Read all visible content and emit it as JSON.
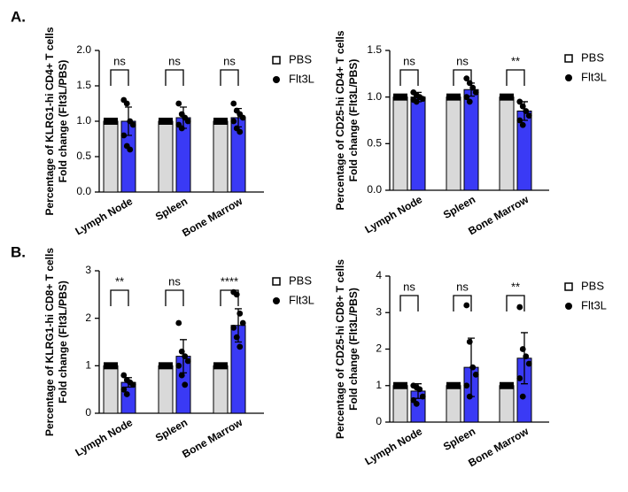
{
  "panel_labels": [
    "A.",
    "B."
  ],
  "chart_data": [
    {
      "type": "bar",
      "ylabel": [
        "Percentage of KLRG1-hi CD4+ T cells",
        "Fold change (Flt3L/PBS)"
      ],
      "categories": [
        "Lymph Node",
        "Spleen",
        "Bone Marrow"
      ],
      "series": [
        {
          "name": "PBS",
          "color": "#d9d9d9",
          "marker": "square",
          "values": [
            1,
            1,
            1
          ]
        },
        {
          "name": "Flt3L",
          "color": "#3a3af5",
          "marker": "circle",
          "values": [
            1.0,
            1.05,
            1.05
          ],
          "errors": [
            0.2,
            0.15,
            0.13
          ],
          "points": [
            [
              1.3,
              1.25,
              1.0,
              0.95,
              0.8,
              0.65,
              0.6
            ],
            [
              1.25,
              1.1,
              1.05,
              1.0,
              0.95,
              0.9
            ],
            [
              1.25,
              1.15,
              1.1,
              1.05,
              1.0,
              0.9,
              0.85
            ]
          ]
        }
      ],
      "annotations": [
        "ns",
        "ns",
        "ns"
      ],
      "ylim": [
        0,
        2
      ],
      "yticks": [
        {
          "value": 0,
          "label": "0.0"
        },
        {
          "value": 0.5,
          "label": "0.5"
        },
        {
          "value": 1,
          "label": "1.0"
        },
        {
          "value": 1.5,
          "label": "1.5"
        },
        {
          "value": 2,
          "label": "2.0"
        }
      ]
    },
    {
      "type": "bar",
      "ylabel": [
        "Percentage of CD25-hi CD4+ T cells",
        "Fold change (Flt3L/PBS)"
      ],
      "categories": [
        "Lymph Node",
        "Spleen",
        "Bone Marrow"
      ],
      "series": [
        {
          "name": "PBS",
          "color": "#d9d9d9",
          "marker": "square",
          "values": [
            1,
            1,
            1
          ]
        },
        {
          "name": "Flt3L",
          "color": "#3a3af5",
          "marker": "circle",
          "values": [
            1.0,
            1.08,
            0.85
          ],
          "errors": [
            0.05,
            0.07,
            0.1
          ],
          "points": [
            [
              1.05,
              1.02,
              1.0,
              0.98,
              0.97,
              0.95
            ],
            [
              1.2,
              1.15,
              1.1,
              1.05,
              1.0,
              0.95
            ],
            [
              0.95,
              0.9,
              0.85,
              0.8,
              0.75,
              0.7
            ]
          ]
        }
      ],
      "annotations": [
        "ns",
        "ns",
        "**"
      ],
      "ylim": [
        0,
        1.5
      ],
      "yticks": [
        {
          "value": 0,
          "label": "0.0"
        },
        {
          "value": 0.5,
          "label": "0.5"
        },
        {
          "value": 1,
          "label": "1.0"
        },
        {
          "value": 1.5,
          "label": "1.5"
        }
      ]
    },
    {
      "type": "bar",
      "ylabel": [
        "Percentage of KLRG1-hi CD8+ T cells",
        "Fold change (Flt3L/PBS)"
      ],
      "categories": [
        "Lymph Node",
        "Spleen",
        "Bone Marrow"
      ],
      "series": [
        {
          "name": "PBS",
          "color": "#d9d9d9",
          "marker": "square",
          "values": [
            1,
            1,
            1
          ]
        },
        {
          "name": "Flt3L",
          "color": "#3a3af5",
          "marker": "circle",
          "values": [
            0.65,
            1.2,
            1.85
          ],
          "errors": [
            0.1,
            0.35,
            0.35
          ],
          "points": [
            [
              0.8,
              0.7,
              0.65,
              0.6,
              0.5,
              0.4
            ],
            [
              1.9,
              1.3,
              1.2,
              1.1,
              1.0,
              0.8,
              0.6
            ],
            [
              2.55,
              2.5,
              2.1,
              1.9,
              1.8,
              1.6,
              1.4
            ]
          ]
        }
      ],
      "annotations": [
        "**",
        "ns",
        "****"
      ],
      "ylim": [
        0,
        3
      ],
      "yticks": [
        0,
        1,
        2,
        3
      ]
    },
    {
      "type": "bar",
      "ylabel": [
        "Percentage of CD25-hi CD8+ T cells",
        "Fold change (Flt3L/PBS)"
      ],
      "categories": [
        "Lymph Node",
        "Spleen",
        "Bone Marrow"
      ],
      "series": [
        {
          "name": "PBS",
          "color": "#d9d9d9",
          "marker": "square",
          "values": [
            1,
            1,
            1
          ]
        },
        {
          "name": "Flt3L",
          "color": "#3a3af5",
          "marker": "circle",
          "values": [
            0.85,
            1.5,
            1.75
          ],
          "errors": [
            0.2,
            0.8,
            0.7
          ],
          "points": [
            [
              1.0,
              0.95,
              0.9,
              0.7,
              0.6,
              0.5
            ],
            [
              3.2,
              2.2,
              1.5,
              1.3,
              1.0,
              0.7
            ],
            [
              3.15,
              2.0,
              1.8,
              1.6,
              1.2,
              0.7
            ]
          ]
        }
      ],
      "annotations": [
        "ns",
        "ns",
        "**"
      ],
      "ylim": [
        0,
        4
      ],
      "yticks": [
        0,
        1,
        2,
        3,
        4
      ]
    }
  ]
}
